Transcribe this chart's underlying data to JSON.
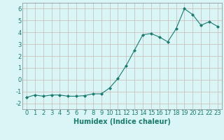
{
  "x": [
    0,
    1,
    2,
    3,
    4,
    5,
    6,
    7,
    8,
    9,
    10,
    11,
    12,
    13,
    14,
    15,
    16,
    17,
    18,
    19,
    20,
    21,
    22,
    23
  ],
  "y": [
    -1.5,
    -1.3,
    -1.4,
    -1.3,
    -1.3,
    -1.4,
    -1.4,
    -1.35,
    -1.2,
    -1.2,
    -0.7,
    0.1,
    1.2,
    2.5,
    3.8,
    3.9,
    3.6,
    3.2,
    4.3,
    6.0,
    5.5,
    4.6,
    4.9,
    4.5
  ],
  "xlim": [
    -0.5,
    23.5
  ],
  "ylim": [
    -2.5,
    6.5
  ],
  "yticks": [
    -2,
    -1,
    0,
    1,
    2,
    3,
    4,
    5,
    6
  ],
  "xticks": [
    0,
    1,
    2,
    3,
    4,
    5,
    6,
    7,
    8,
    9,
    10,
    11,
    12,
    13,
    14,
    15,
    16,
    17,
    18,
    19,
    20,
    21,
    22,
    23
  ],
  "xlabel": "Humidex (Indice chaleur)",
  "line_color": "#1a7a6e",
  "marker": "D",
  "marker_size": 2.0,
  "background_color": "#d9f5f5",
  "grid_color": "#c8b8b8",
  "xlabel_fontsize": 7,
  "tick_fontsize": 6
}
